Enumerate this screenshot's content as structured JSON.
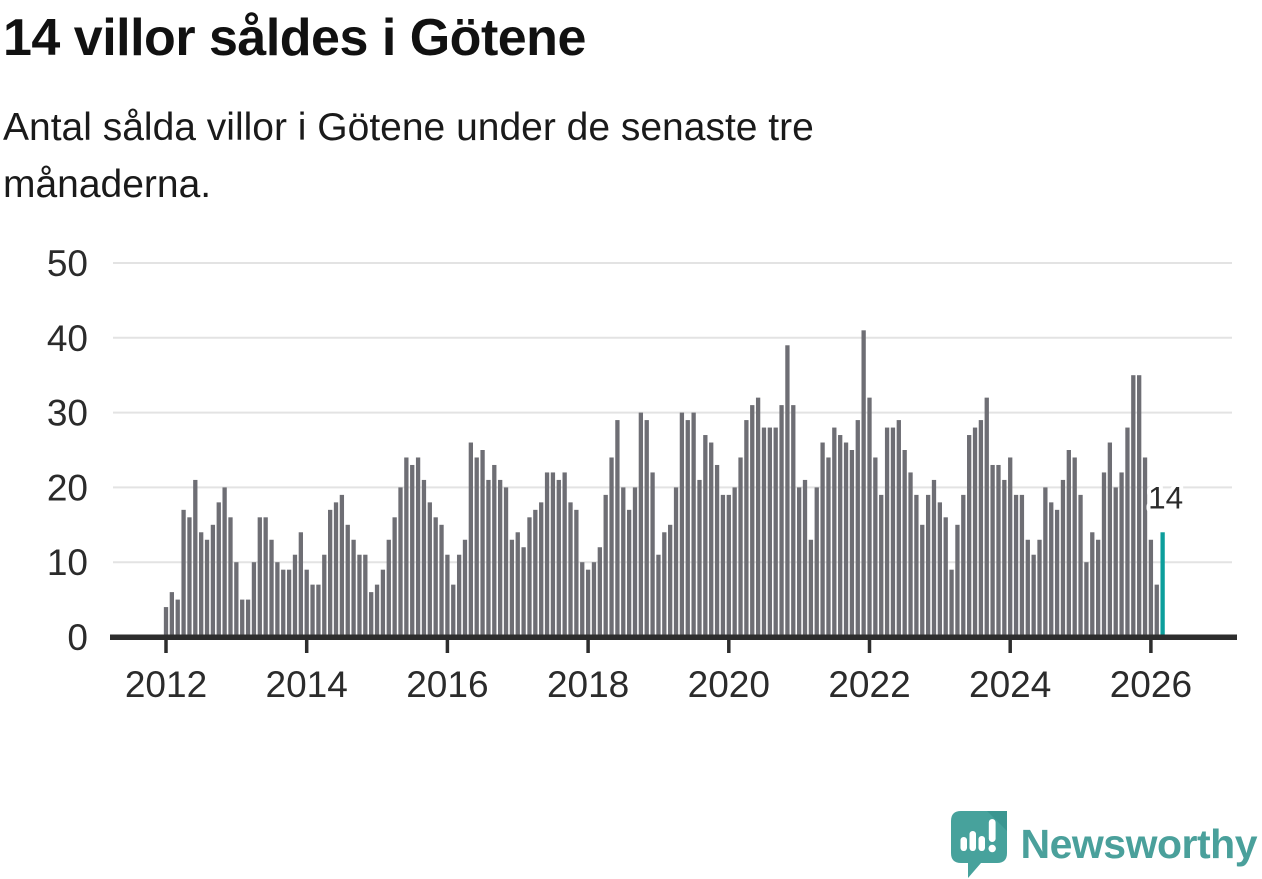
{
  "header": {
    "title": "14 villor såldes i Götene",
    "subtitle": "Antal sålda villor i Götene under de senaste tre\nmånaderna."
  },
  "chart_data": {
    "type": "bar",
    "title": "14 villor såldes i Götene",
    "xlabel": "",
    "ylabel": "",
    "x_start": "2012-01",
    "x_interval": "monthly",
    "values": [
      4,
      6,
      5,
      17,
      16,
      21,
      14,
      13,
      15,
      18,
      20,
      16,
      10,
      5,
      5,
      10,
      16,
      16,
      13,
      10,
      9,
      9,
      11,
      14,
      9,
      7,
      7,
      11,
      17,
      18,
      19,
      15,
      13,
      11,
      11,
      6,
      7,
      9,
      13,
      16,
      20,
      24,
      23,
      24,
      21,
      18,
      16,
      15,
      11,
      7,
      11,
      13,
      26,
      24,
      25,
      21,
      23,
      21,
      20,
      13,
      14,
      12,
      16,
      17,
      18,
      22,
      22,
      21,
      22,
      18,
      17,
      10,
      9,
      10,
      12,
      19,
      24,
      29,
      20,
      17,
      20,
      30,
      29,
      22,
      11,
      14,
      15,
      20,
      30,
      29,
      30,
      21,
      27,
      26,
      23,
      19,
      19,
      20,
      24,
      29,
      31,
      32,
      28,
      28,
      28,
      31,
      39,
      31,
      20,
      21,
      13,
      20,
      26,
      24,
      28,
      27,
      26,
      25,
      29,
      41,
      32,
      24,
      19,
      28,
      28,
      29,
      25,
      22,
      19,
      15,
      19,
      21,
      18,
      16,
      9,
      15,
      19,
      27,
      28,
      29,
      32,
      23,
      23,
      21,
      24,
      19,
      19,
      13,
      11,
      13,
      20,
      18,
      17,
      21,
      25,
      24,
      19,
      10,
      14,
      13,
      22,
      26,
      20,
      22,
      28,
      35,
      35,
      24,
      13,
      7,
      14
    ],
    "highlight": {
      "index": 170,
      "value": 14,
      "label": "14"
    },
    "yticks": [
      0,
      10,
      20,
      30,
      40,
      50
    ],
    "ylim": [
      0,
      50
    ],
    "xticks": [
      2012,
      2014,
      2016,
      2018,
      2020,
      2022,
      2024,
      2026
    ],
    "grid": true,
    "legend": false,
    "colors": {
      "bar": "#6e6e74",
      "highlight": "#0d9e9c",
      "gridline": "#e3e3e3",
      "axis": "#2d2d2d",
      "tick_label": "#2b2b2b",
      "annotation_text": "#1a1a1a"
    }
  },
  "footer": {
    "brand": "Newsworthy",
    "logo_colors": {
      "bubble": "#47a29c",
      "fold": "#3b9691",
      "glyphs": "#ffffff",
      "text": "#4aa09b"
    }
  }
}
